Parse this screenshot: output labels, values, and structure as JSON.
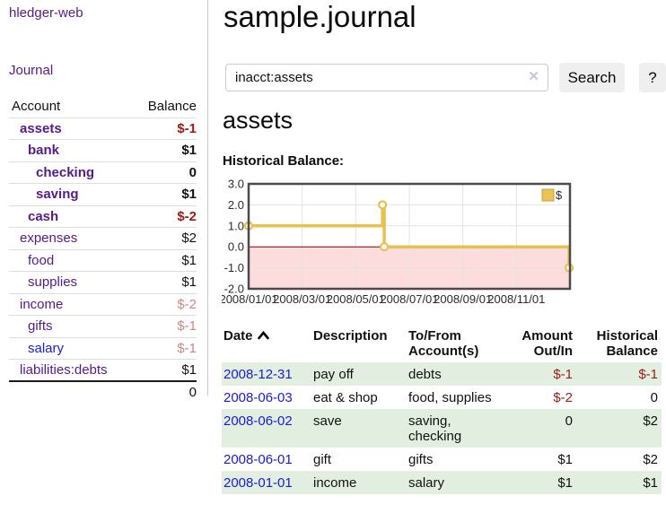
{
  "sidebar": {
    "app_title": "hledger-web",
    "nav": {
      "journal": "Journal"
    },
    "accounts_table": {
      "headers": {
        "account": "Account",
        "balance": "Balance"
      },
      "rows": [
        {
          "name": "assets",
          "balance": "$-1",
          "indent": 1,
          "bold": true,
          "neg": "strong",
          "link": "purple"
        },
        {
          "name": "bank",
          "balance": "$1",
          "indent": 2,
          "bold": true,
          "neg": "none",
          "link": "purple"
        },
        {
          "name": "checking",
          "balance": "0",
          "indent": 3,
          "bold": true,
          "neg": "none",
          "link": "purple"
        },
        {
          "name": "saving",
          "balance": "$1",
          "indent": 3,
          "bold": true,
          "neg": "none",
          "link": "purple"
        },
        {
          "name": "cash",
          "balance": "$-2",
          "indent": 2,
          "bold": true,
          "neg": "strong",
          "link": "purple"
        },
        {
          "name": "expenses",
          "balance": "$2",
          "indent": 1,
          "bold": false,
          "neg": "none",
          "link": "purple"
        },
        {
          "name": "food",
          "balance": "$1",
          "indent": 2,
          "bold": false,
          "neg": "none",
          "link": "purple"
        },
        {
          "name": "supplies",
          "balance": "$1",
          "indent": 2,
          "bold": false,
          "neg": "none",
          "link": "purple"
        },
        {
          "name": "income",
          "balance": "$-2",
          "indent": 1,
          "bold": false,
          "neg": "faded",
          "link": "purple"
        },
        {
          "name": "gifts",
          "balance": "$-1",
          "indent": 2,
          "bold": false,
          "neg": "faded",
          "link": "purple"
        },
        {
          "name": "salary",
          "balance": "$-1",
          "indent": 2,
          "bold": false,
          "neg": "faded",
          "link": "blue"
        },
        {
          "name": "liabilities:debts",
          "balance": "$1",
          "indent": 1,
          "bold": false,
          "neg": "none",
          "link": "purple"
        }
      ],
      "total": "0"
    }
  },
  "header": {
    "title": "sample.journal"
  },
  "search": {
    "value": "inacct:assets",
    "clear_icon": "✕",
    "button": "Search",
    "help_button": "?"
  },
  "account_page": {
    "heading": "assets",
    "chart_label": "Historical Balance:"
  },
  "chart_data": {
    "type": "line",
    "step": true,
    "title": "Historical Balance",
    "series": [
      {
        "name": "$",
        "points": [
          {
            "date": "2008-01-01",
            "value": 1
          },
          {
            "date": "2008-06-01",
            "value": 2
          },
          {
            "date": "2008-06-03",
            "value": 0
          },
          {
            "date": "2008-12-31",
            "value": -1
          }
        ]
      }
    ],
    "x_ticks": [
      "2008/01/01",
      "2008/03/01",
      "2008/05/01",
      "2008/07/01",
      "2008/09/01",
      "2008/11/01"
    ],
    "y_ticks": [
      3.0,
      2.0,
      1.0,
      0.0,
      -1.0,
      -2.0
    ],
    "ylim": [
      -2,
      3
    ],
    "x_range": [
      "2008-01-01",
      "2009-01-01"
    ],
    "grid": true,
    "line_color": "#e7c04f",
    "negative_region_color": "#fcdcdc",
    "zero_line_color": "#8b0000",
    "legend": {
      "label": "$",
      "position": "top-right",
      "swatch_color": "#e9c455"
    }
  },
  "register": {
    "columns": [
      {
        "l1": "Date",
        "l2": "",
        "align": "left",
        "sort": "asc"
      },
      {
        "l1": "Description",
        "l2": "",
        "align": "left"
      },
      {
        "l1": "To/From",
        "l2": "Account(s)",
        "align": "left"
      },
      {
        "l1": "Amount",
        "l2": "Out/In",
        "align": "right"
      },
      {
        "l1": "Historical",
        "l2": "Balance",
        "align": "right"
      }
    ],
    "rows": [
      {
        "date": "2008-12-31",
        "description": "pay off",
        "accounts": "debts",
        "amount": "$-1",
        "balance": "$-1"
      },
      {
        "date": "2008-06-03",
        "description": "eat & shop",
        "accounts": "food, supplies",
        "amount": "$-2",
        "balance": "0"
      },
      {
        "date": "2008-06-02",
        "description": "save",
        "accounts": "saving, checking",
        "amount": "0",
        "balance": "$2"
      },
      {
        "date": "2008-06-01",
        "description": "gift",
        "accounts": "gifts",
        "amount": "$1",
        "balance": "$2"
      },
      {
        "date": "2008-01-01",
        "description": "income",
        "accounts": "salary",
        "amount": "$1",
        "balance": "$1"
      }
    ]
  },
  "colors": {
    "link_purple": "#551b8b",
    "link_blue": "#1a1ad8",
    "negative_strong": "#9b1b15",
    "negative_faded": "#c98884",
    "row_green": "#e2efe0",
    "button_bg": "#efefef"
  }
}
